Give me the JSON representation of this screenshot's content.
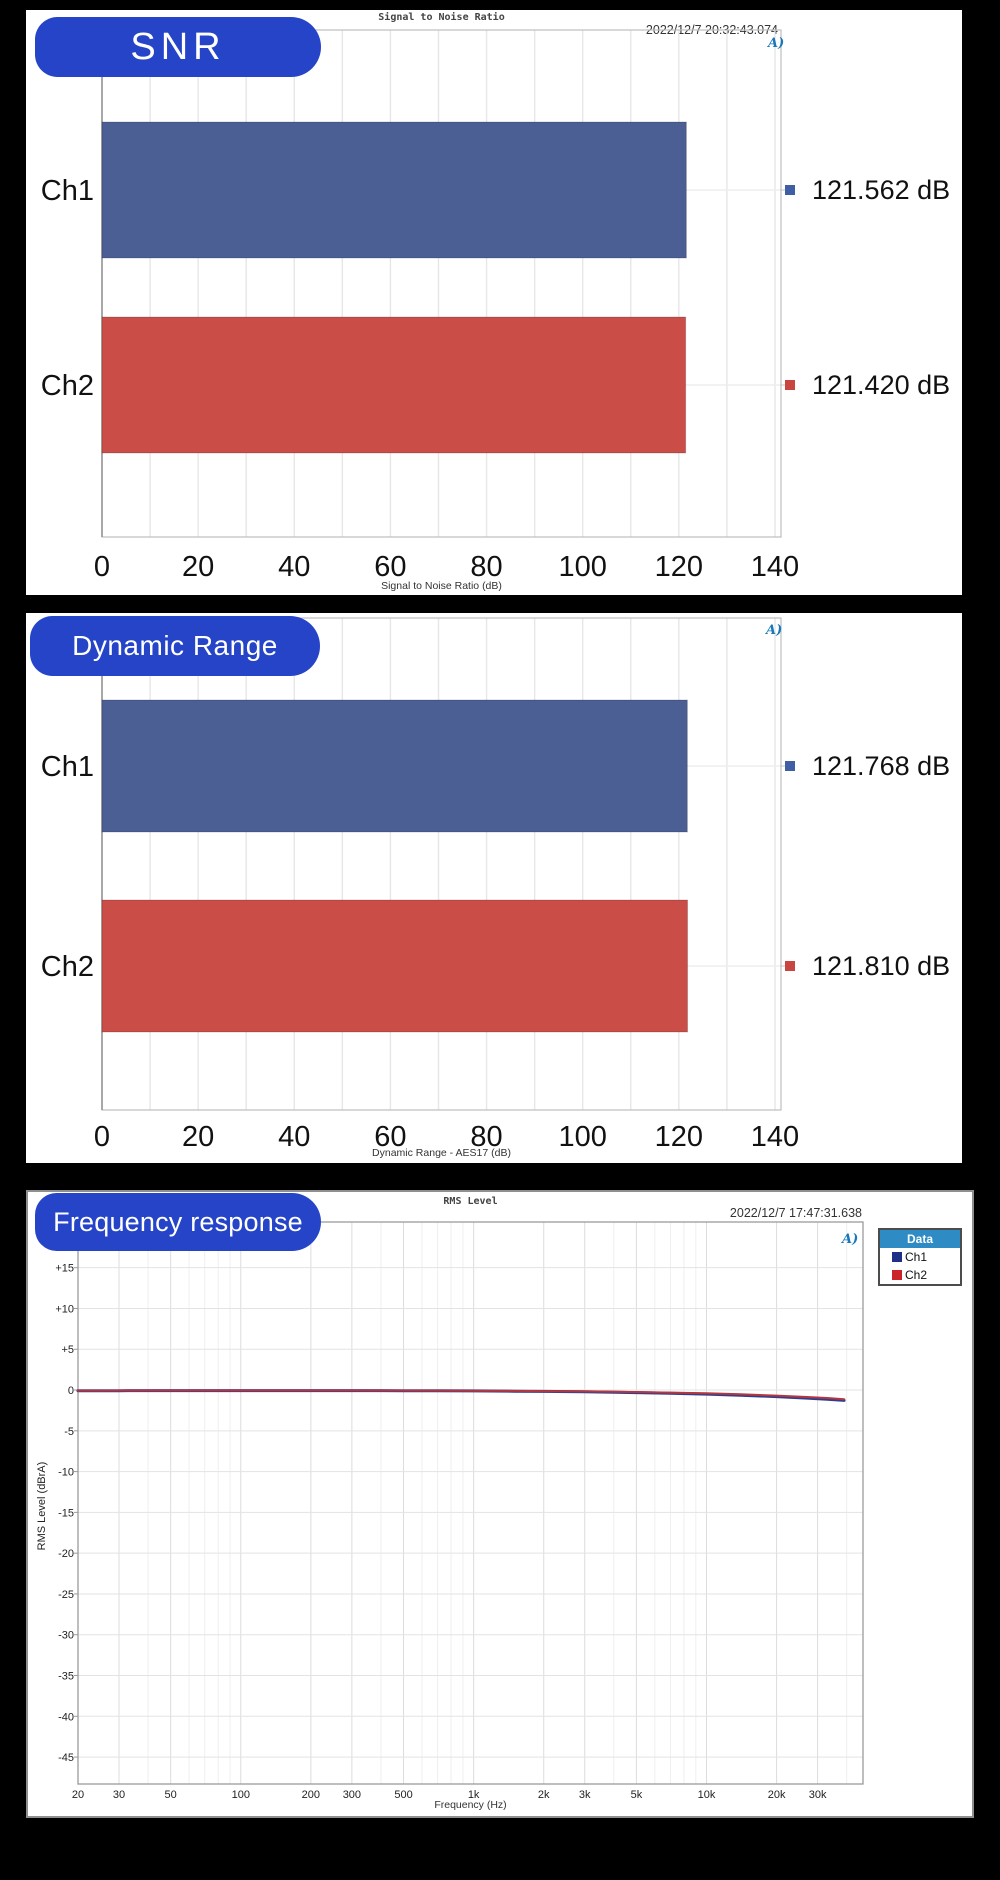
{
  "chart_data": [
    {
      "type": "bar",
      "panel": "snr",
      "badge": "SNR",
      "title": "Signal to Noise Ratio",
      "timestamp": "2022/12/7 20:32:43.074",
      "xlabel": "Signal to Noise Ratio (dB)",
      "categories": [
        "Ch1",
        "Ch2"
      ],
      "values": [
        121.562,
        121.42
      ],
      "value_labels": [
        "121.562 dB",
        "121.420 dB"
      ],
      "bar_colors": [
        "#4b5f95",
        "#cb4d48"
      ],
      "marker_colors": [
        "#3f5fa5",
        "#c9453f"
      ],
      "xlim": [
        0,
        140
      ],
      "xticks": [
        0,
        20,
        40,
        60,
        80,
        100,
        120,
        140
      ],
      "grid_step": 10,
      "logo": "A)"
    },
    {
      "type": "bar",
      "panel": "dynamic_range",
      "badge": "Dynamic Range",
      "title": "",
      "timestamp": "",
      "xlabel": "Dynamic Range - AES17 (dB)",
      "categories": [
        "Ch1",
        "Ch2"
      ],
      "values": [
        121.768,
        121.81
      ],
      "value_labels": [
        "121.768 dB",
        "121.810 dB"
      ],
      "bar_colors": [
        "#4b5f95",
        "#cb4d48"
      ],
      "marker_colors": [
        "#3f5fa5",
        "#c9453f"
      ],
      "xlim": [
        0,
        140
      ],
      "xticks": [
        0,
        20,
        40,
        60,
        80,
        100,
        120,
        140
      ],
      "grid_step": 10,
      "logo": "A)"
    },
    {
      "type": "line",
      "panel": "frequency_response",
      "badge": "Frequency response",
      "title": "RMS Level",
      "timestamp": "2022/12/7 17:47:31.638",
      "xlabel": "Frequency (Hz)",
      "ylabel": "RMS Level (dBrA)",
      "x_scale": "log",
      "xlim": [
        20,
        47000
      ],
      "ylim": [
        -48.3,
        20.6
      ],
      "xticks": [
        20,
        30,
        50,
        100,
        200,
        300,
        500,
        1000,
        2000,
        3000,
        5000,
        10000,
        20000,
        30000
      ],
      "xtick_labels": [
        "20",
        "30",
        "50",
        "100",
        "200",
        "300",
        "500",
        "1k",
        "2k",
        "3k",
        "5k",
        "10k",
        "20k",
        "30k"
      ],
      "yticks": [
        15,
        10,
        5,
        0,
        -5,
        -10,
        -15,
        -20,
        -25,
        -30,
        -35,
        -40,
        -45
      ],
      "ytick_labels": [
        "+15",
        "+10",
        "+5",
        "0",
        "-5",
        "-10",
        "-15",
        "-20",
        "-25",
        "-30",
        "-35",
        "-40",
        "-45"
      ],
      "legend": {
        "header": "Data",
        "items": [
          {
            "label": "Ch1",
            "color": "#1d2f87"
          },
          {
            "label": "Ch2",
            "color": "#cc2229"
          }
        ]
      },
      "series": [
        {
          "name": "Ch1",
          "color": "#2c3f8f",
          "points": [
            [
              20,
              -0.1
            ],
            [
              30,
              -0.08
            ],
            [
              50,
              -0.07
            ],
            [
              100,
              -0.07
            ],
            [
              200,
              -0.07
            ],
            [
              300,
              -0.07
            ],
            [
              500,
              -0.08
            ],
            [
              700,
              -0.09
            ],
            [
              1000,
              -0.11
            ],
            [
              1500,
              -0.14
            ],
            [
              2000,
              -0.17
            ],
            [
              3000,
              -0.22
            ],
            [
              5000,
              -0.31
            ],
            [
              7000,
              -0.39
            ],
            [
              10000,
              -0.5
            ],
            [
              14000,
              -0.63
            ],
            [
              20000,
              -0.8
            ],
            [
              27000,
              -0.99
            ],
            [
              33000,
              -1.13
            ],
            [
              39000,
              -1.27
            ]
          ]
        },
        {
          "name": "Ch2",
          "color": "#b5363e",
          "points": [
            [
              20,
              -0.07
            ],
            [
              30,
              -0.06
            ],
            [
              50,
              -0.05
            ],
            [
              100,
              -0.05
            ],
            [
              200,
              -0.05
            ],
            [
              300,
              -0.05
            ],
            [
              500,
              -0.06
            ],
            [
              700,
              -0.07
            ],
            [
              1000,
              -0.09
            ],
            [
              1500,
              -0.11
            ],
            [
              2000,
              -0.13
            ],
            [
              3000,
              -0.17
            ],
            [
              5000,
              -0.24
            ],
            [
              7000,
              -0.31
            ],
            [
              10000,
              -0.4
            ],
            [
              14000,
              -0.52
            ],
            [
              20000,
              -0.68
            ],
            [
              27000,
              -0.85
            ],
            [
              33000,
              -0.98
            ],
            [
              39000,
              -1.12
            ]
          ]
        }
      ],
      "logo": "A)"
    }
  ]
}
